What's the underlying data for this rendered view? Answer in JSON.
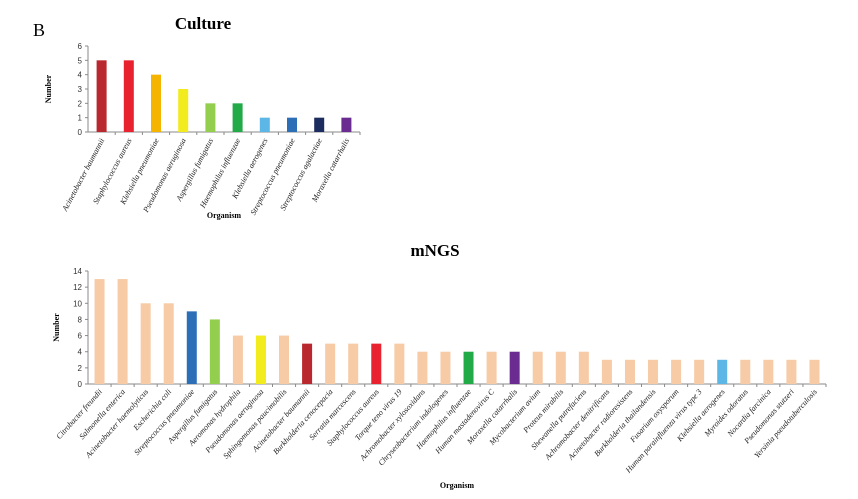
{
  "panel_label": "B",
  "chart_data": [
    {
      "type": "bar",
      "title": "Culture",
      "xlabel": "Organism",
      "ylabel": "Number",
      "ylim": [
        0,
        6
      ],
      "yticks": [
        0,
        1,
        2,
        3,
        4,
        5,
        6
      ],
      "grid": false,
      "categories": [
        "Acinetobacter baumannii",
        "Staphylococcus aureus",
        "Klebsiella pneumoniae",
        "Pseudomonas aeruginosa",
        "Aspergillus fumigatus",
        "Haemophilus influenzae",
        "Klebsiella aerogenes",
        "Streptococcus pneumoniae",
        "Streptococcus agalactiae",
        "Moraxella catarrhalis"
      ],
      "values": [
        5,
        5,
        4,
        3,
        2,
        2,
        1,
        1,
        1,
        1
      ],
      "colors": [
        "#b8282e",
        "#e8232f",
        "#f4b400",
        "#f2ec1e",
        "#93ce4e",
        "#22aa48",
        "#5cb6e6",
        "#2d6fb7",
        "#1d2c5e",
        "#6b2c91"
      ]
    },
    {
      "type": "bar",
      "title": "mNGS",
      "xlabel": "Organism",
      "ylabel": "Number",
      "ylim": [
        0,
        14
      ],
      "yticks": [
        0,
        2,
        4,
        6,
        8,
        10,
        12,
        14
      ],
      "grid": false,
      "categories": [
        "Citrobacter freundii",
        "Salmonella enterica",
        "Acinetobacter haemolyticus",
        "Escherichia coli",
        "Streptococcus pneumoniae",
        "Aspergillus fumigatus",
        "Aeromonas hydrophila",
        "Pseudomonas aeruginosa",
        "Sphingomonas paucimobilis",
        "Acinetobacter baumannii",
        "Burkholderia cenocepacia",
        "Serratia marcescens",
        "Staphylococcus aureus",
        "Torque teno virus 19",
        "Achromobacter xylosoxidans",
        "Chryseobacterium indologenes",
        "Haemophilus influenzae",
        "Human mastadenovirus C",
        "Moraxella catarrhalis",
        "Mycobacterium avium",
        "Proteus mirabilis",
        "Shewanella putrefaciens",
        "Achromobacter denitrificans",
        "Acinetobacter radioresistens",
        "Burkholderia thailandensis",
        "Fusarium oxysporum",
        "Human parainfluenza virus type 3",
        "Klebsiella aerogenes",
        "Myroides odoratus",
        "Nocardia farcinica",
        "Pseudomonas stutzeri",
        "Yersinia pseudotuberculosis"
      ],
      "values": [
        13,
        13,
        10,
        10,
        9,
        8,
        6,
        6,
        6,
        5,
        5,
        5,
        5,
        5,
        4,
        4,
        4,
        4,
        4,
        4,
        4,
        4,
        3,
        3,
        3,
        3,
        3,
        3,
        3,
        3,
        3,
        3
      ],
      "colors": [
        "#f6cba6",
        "#f6cba6",
        "#f6cba6",
        "#f6cba6",
        "#2d6fb7",
        "#93ce4e",
        "#f6cba6",
        "#f2ec1e",
        "#f6cba6",
        "#b8282e",
        "#f6cba6",
        "#f6cba6",
        "#e8232f",
        "#f6cba6",
        "#f6cba6",
        "#f6cba6",
        "#22aa48",
        "#f6cba6",
        "#6b2c91",
        "#f6cba6",
        "#f6cba6",
        "#f6cba6",
        "#f6cba6",
        "#f6cba6",
        "#f6cba6",
        "#f6cba6",
        "#f6cba6",
        "#5cb6e6",
        "#f6cba6",
        "#f6cba6",
        "#f6cba6",
        "#f6cba6"
      ]
    }
  ]
}
